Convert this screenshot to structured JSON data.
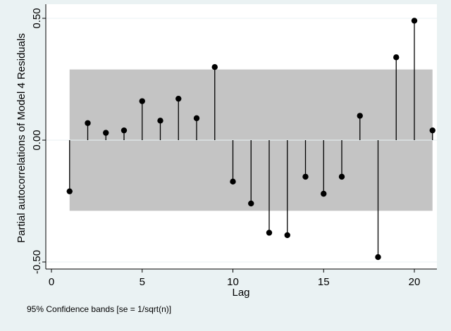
{
  "chart_data": {
    "type": "stem",
    "ylabel": "Partial autocorrelations of Model 4 Residuals",
    "xlabel": "Lag",
    "note": "95% Confidence bands [se = 1/sqrt(n)]",
    "xlim": [
      0,
      21
    ],
    "ylim": [
      -0.5,
      0.5
    ],
    "xticks": [
      0,
      5,
      10,
      15,
      20
    ],
    "yticks": [
      -0.5,
      0,
      0.5
    ],
    "ytick_labels": [
      "-0.50",
      "0.00",
      "0.50"
    ],
    "confidence_band": {
      "upper": 0.29,
      "lower": -0.29,
      "x_start": 1,
      "x_end": 21,
      "color": "#c4c4c4"
    },
    "x": [
      1,
      2,
      3,
      4,
      5,
      6,
      7,
      8,
      9,
      10,
      11,
      12,
      13,
      14,
      15,
      16,
      17,
      18,
      19,
      20,
      21
    ],
    "values": [
      -0.21,
      0.07,
      0.03,
      0.04,
      0.16,
      0.08,
      0.17,
      0.09,
      0.3,
      -0.17,
      -0.26,
      -0.38,
      -0.39,
      -0.15,
      -0.22,
      -0.15,
      0.1,
      -0.48,
      0.34,
      0.49,
      0.04
    ],
    "grid": true,
    "colors": {
      "background": "#eaf2f3",
      "plot_area": "#ffffff",
      "grid": "#eaf2f3",
      "stem": "#000000"
    }
  }
}
